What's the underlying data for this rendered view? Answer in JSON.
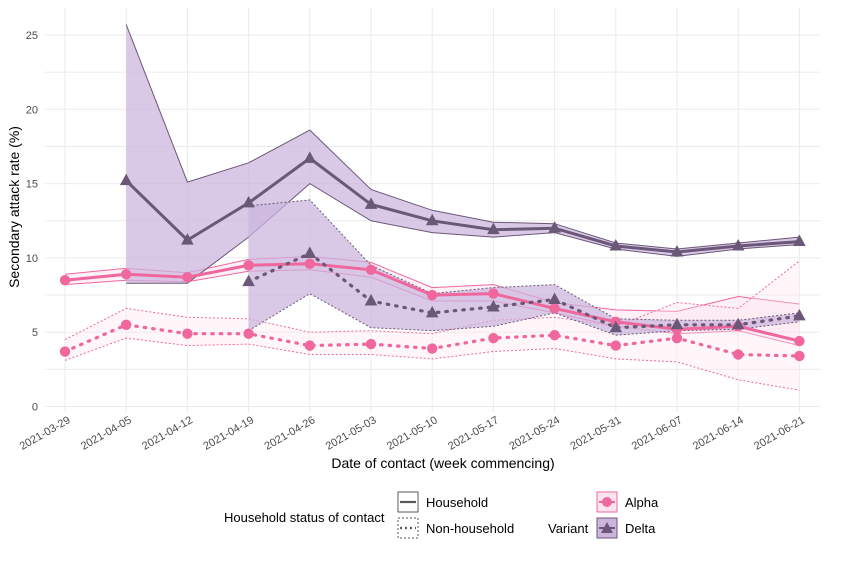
{
  "chart_data": {
    "type": "line",
    "xlabel": "Date of contact (week commencing)",
    "ylabel": "Secondary attack rate (%)",
    "ylim": [
      0,
      26
    ],
    "yticks": [
      0,
      5,
      10,
      15,
      20,
      25
    ],
    "categories": [
      "2021-03-29",
      "2021-04-05",
      "2021-04-12",
      "2021-04-19",
      "2021-04-26",
      "2021-05-03",
      "2021-05-10",
      "2021-05-17",
      "2021-05-24",
      "2021-05-31",
      "2021-06-07",
      "2021-06-14",
      "2021-06-21"
    ],
    "grid": true,
    "legend": {
      "position": "bottom",
      "household_title": "Household status of contact",
      "household_labels": [
        "Household",
        "Non-household"
      ],
      "variant_title": "Variant",
      "variant_labels": [
        "Alpha",
        "Delta"
      ]
    },
    "colors": {
      "alpha_line": "#f0679e",
      "alpha_fill": "#fce4ef",
      "delta_line": "#6b5777",
      "delta_fill": "#cbb4de"
    },
    "series": [
      {
        "variant": "Alpha",
        "household": "Household",
        "values": [
          8.5,
          8.9,
          8.7,
          9.5,
          9.6,
          9.2,
          7.5,
          7.6,
          6.6,
          5.7,
          5.2,
          5.4,
          4.4
        ],
        "lower": [
          8.2,
          8.5,
          8.4,
          9.1,
          9.2,
          8.7,
          7.1,
          7.1,
          6.3,
          5.4,
          4.9,
          5.1,
          4.1
        ],
        "upper": [
          8.9,
          9.3,
          9.0,
          9.9,
          10.1,
          9.7,
          8.0,
          8.2,
          7.0,
          6.5,
          6.4,
          7.4,
          6.9
        ]
      },
      {
        "variant": "Alpha",
        "household": "Non-household",
        "values": [
          3.7,
          5.5,
          4.9,
          4.9,
          4.1,
          4.2,
          3.9,
          4.6,
          4.8,
          4.1,
          4.6,
          3.5,
          3.4
        ],
        "lower": [
          3.1,
          4.6,
          4.1,
          4.2,
          3.5,
          3.5,
          3.2,
          3.7,
          3.9,
          3.2,
          3.0,
          1.8,
          1.1
        ],
        "upper": [
          4.5,
          6.6,
          6.0,
          5.9,
          5.0,
          5.1,
          4.9,
          5.8,
          6.0,
          5.4,
          7.0,
          6.6,
          9.8
        ]
      },
      {
        "variant": "Delta",
        "household": "Household",
        "values": [
          null,
          15.2,
          11.2,
          13.7,
          16.7,
          13.6,
          12.5,
          11.9,
          12.0,
          10.8,
          10.4,
          10.8,
          11.1
        ],
        "lower": [
          null,
          8.3,
          8.3,
          11.4,
          15.0,
          12.5,
          11.7,
          11.4,
          11.7,
          10.6,
          10.1,
          10.6,
          10.9
        ],
        "upper": [
          null,
          25.7,
          15.1,
          16.4,
          18.6,
          14.6,
          13.2,
          12.4,
          12.3,
          11.0,
          10.6,
          11.0,
          11.4
        ]
      },
      {
        "variant": "Delta",
        "household": "Non-household",
        "values": [
          null,
          null,
          null,
          8.4,
          10.3,
          7.1,
          6.3,
          6.7,
          7.2,
          5.3,
          5.5,
          5.5,
          6.1
        ],
        "lower": [
          null,
          null,
          null,
          5.1,
          7.6,
          5.3,
          5.1,
          5.4,
          6.3,
          4.8,
          5.1,
          5.2,
          5.7
        ],
        "upper": [
          null,
          null,
          null,
          13.5,
          13.9,
          9.5,
          7.6,
          8.0,
          8.2,
          5.9,
          5.8,
          5.8,
          6.3
        ]
      }
    ]
  }
}
